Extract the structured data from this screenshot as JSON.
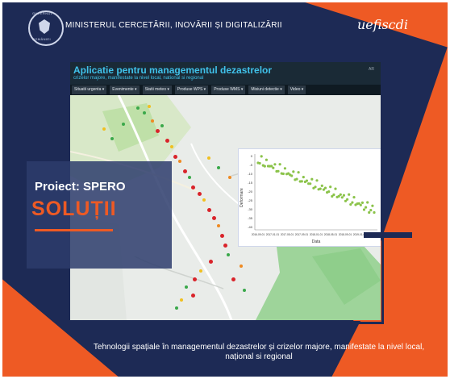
{
  "header": {
    "crest_top": "GUVERNUL",
    "crest_bottom": "ROMÂNIEI",
    "ministry": "MINISTERUL CERCETĂRII, INOVĂRII ȘI DIGITALIZĂRII",
    "partner": "uefiscdi"
  },
  "app": {
    "title": "Aplicatie pentru managementul dezastrelor",
    "subtitle": "crizelor majore, manifestate la nivel local, national si regional",
    "corner": "AR",
    "menu": [
      "Situatii urgenta ▾",
      "Evenimente ▾",
      "Statii meteo ▾",
      "Produse WPS ▾",
      "Produse WMS ▾",
      "Misiuni detectie ▾",
      "Video ▾"
    ]
  },
  "inset_chart": {
    "ylabel": "Deformare",
    "xlabel": "Data",
    "yticks": [
      "0",
      "-5",
      "-10",
      "-15",
      "-20",
      "-25",
      "-30",
      "-35",
      "-40"
    ],
    "xticks": [
      "2016-09-01",
      "2017-01-01",
      "2017-05-01",
      "2017-09-01",
      "2018-01-01",
      "2018-05-01",
      "2018-09-01",
      "2019-01-01",
      "2019-05-01"
    ]
  },
  "panel": {
    "project": "Proiect: SPERO",
    "section": "SOLUȚII"
  },
  "footer": {
    "caption": "Tehnologii spațiale în managementul dezastrelor și crizelor majore, manifestate la nivel local, național si regional"
  },
  "colors": {
    "navy": "#1d2a55",
    "orange": "#ee5a24",
    "app_cyan": "#40c2ea",
    "scatter_green": "#8bc34a"
  }
}
